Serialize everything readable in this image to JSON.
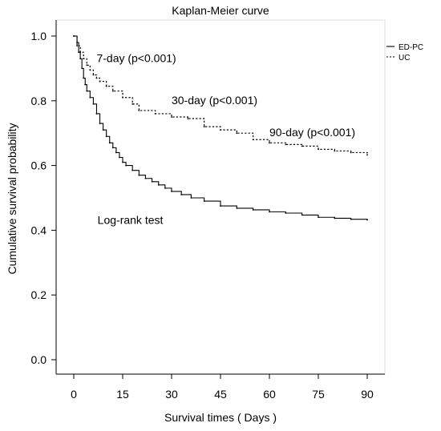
{
  "chart_data": {
    "type": "line",
    "title": "Kaplan-Meier curve",
    "xlabel": "Survival times ( Days )",
    "ylabel": "Cumulative survival probability",
    "xlim": [
      0,
      90
    ],
    "ylim": [
      0,
      1
    ],
    "x_ticks": [
      0,
      15,
      30,
      45,
      60,
      75,
      90
    ],
    "x_tick_labels": [
      "0",
      "15",
      "30",
      "45",
      "60",
      "75",
      "90"
    ],
    "y_ticks": [
      0,
      0.2,
      0.4,
      0.6,
      0.8,
      1.0
    ],
    "y_tick_labels": [
      "0.0",
      "0.2",
      "0.4",
      "0.6",
      "0.8",
      "1.0"
    ],
    "grid": false,
    "legend_position": "top-right",
    "series": [
      {
        "name": "ED-PC",
        "line_style": "solid",
        "color": "#000000",
        "step": true,
        "x": [
          0,
          1,
          1.5,
          2,
          2.5,
          3,
          3.5,
          4,
          5,
          6,
          7,
          8,
          9,
          10,
          11,
          12,
          13,
          14,
          15,
          16,
          18,
          20,
          22,
          24,
          26,
          28,
          30,
          33,
          36,
          40,
          45,
          50,
          55,
          60,
          65,
          70,
          75,
          80,
          85,
          90
        ],
        "y": [
          1.0,
          0.98,
          0.95,
          0.93,
          0.9,
          0.87,
          0.85,
          0.83,
          0.81,
          0.79,
          0.76,
          0.73,
          0.71,
          0.69,
          0.67,
          0.655,
          0.64,
          0.625,
          0.61,
          0.6,
          0.585,
          0.57,
          0.56,
          0.55,
          0.54,
          0.53,
          0.52,
          0.51,
          0.5,
          0.49,
          0.475,
          0.468,
          0.463,
          0.457,
          0.453,
          0.447,
          0.44,
          0.437,
          0.434,
          0.432
        ]
      },
      {
        "name": "UC",
        "line_style": "dashed",
        "color": "#000000",
        "step": true,
        "x": [
          0,
          1,
          2,
          3,
          4,
          5,
          6,
          7,
          8,
          10,
          12,
          15,
          18,
          20,
          25,
          30,
          35,
          40,
          45,
          50,
          55,
          60,
          65,
          70,
          75,
          80,
          85,
          90
        ],
        "y": [
          1.0,
          0.97,
          0.95,
          0.93,
          0.91,
          0.895,
          0.88,
          0.87,
          0.86,
          0.845,
          0.83,
          0.81,
          0.79,
          0.77,
          0.76,
          0.75,
          0.745,
          0.72,
          0.71,
          0.7,
          0.68,
          0.67,
          0.665,
          0.66,
          0.65,
          0.645,
          0.64,
          0.633
        ]
      }
    ],
    "annotations": [
      {
        "text": "7-day (p<0.001)",
        "x": 7,
        "y": 0.92
      },
      {
        "text": "30-day (p<0.001)",
        "x": 30,
        "y": 0.79
      },
      {
        "text": "90-day (p<0.001)",
        "x": 60,
        "y": 0.69
      },
      {
        "text": "Log-rank test",
        "x": 7.3,
        "y": 0.42
      }
    ]
  }
}
